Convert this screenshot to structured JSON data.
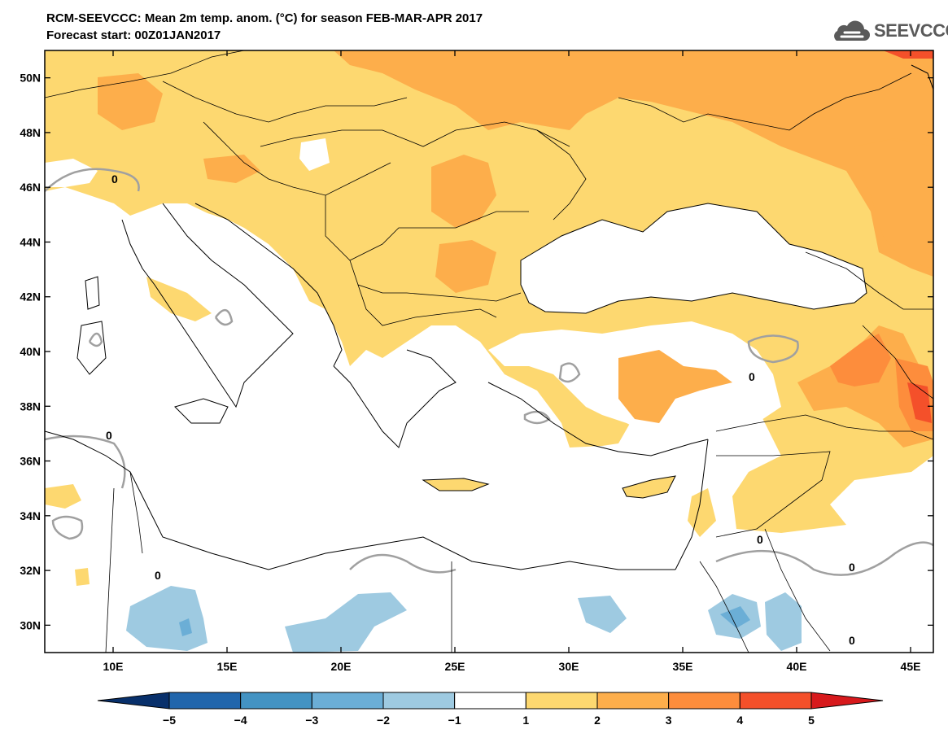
{
  "header": {
    "title_line1": "RCM-SEEVCCC: Mean 2m temp. anom. (°C) for season FEB-MAR-APR 2017",
    "title_line2": "Forecast start: 00Z01JAN2017",
    "logo_text": "SEEVCCC"
  },
  "map": {
    "lon_range": [
      7,
      46
    ],
    "lat_range": [
      29,
      51
    ],
    "lat_ticks": [
      {
        "value": 50,
        "label": "50N"
      },
      {
        "value": 48,
        "label": "48N"
      },
      {
        "value": 46,
        "label": "46N"
      },
      {
        "value": 44,
        "label": "44N"
      },
      {
        "value": 42,
        "label": "42N"
      },
      {
        "value": 40,
        "label": "40N"
      },
      {
        "value": 38,
        "label": "38N"
      },
      {
        "value": 36,
        "label": "36N"
      },
      {
        "value": 34,
        "label": "34N"
      },
      {
        "value": 32,
        "label": "32N"
      },
      {
        "value": 30,
        "label": "30N"
      }
    ],
    "lon_ticks": [
      {
        "value": 10,
        "label": "10E"
      },
      {
        "value": 15,
        "label": "15E"
      },
      {
        "value": 20,
        "label": "20E"
      },
      {
        "value": 25,
        "label": "25E"
      },
      {
        "value": 30,
        "label": "30E"
      },
      {
        "value": 35,
        "label": "35E"
      },
      {
        "value": 40,
        "label": "40E"
      },
      {
        "value": 45,
        "label": "45E"
      }
    ],
    "contour_labels": [
      "0",
      "0",
      "0",
      "0",
      "0",
      "0",
      "0"
    ]
  },
  "colorbar": {
    "ticks": [
      "−5",
      "−4",
      "−3",
      "−2",
      "−1",
      "1",
      "2",
      "3",
      "4",
      "5"
    ],
    "colors": [
      "#08306b",
      "#2166ac",
      "#4393c3",
      "#6baed6",
      "#9ecae1",
      "#ffffff",
      "#fdd870",
      "#fdae4b",
      "#fd8d3c",
      "#f4502a",
      "#d7191c"
    ]
  }
}
